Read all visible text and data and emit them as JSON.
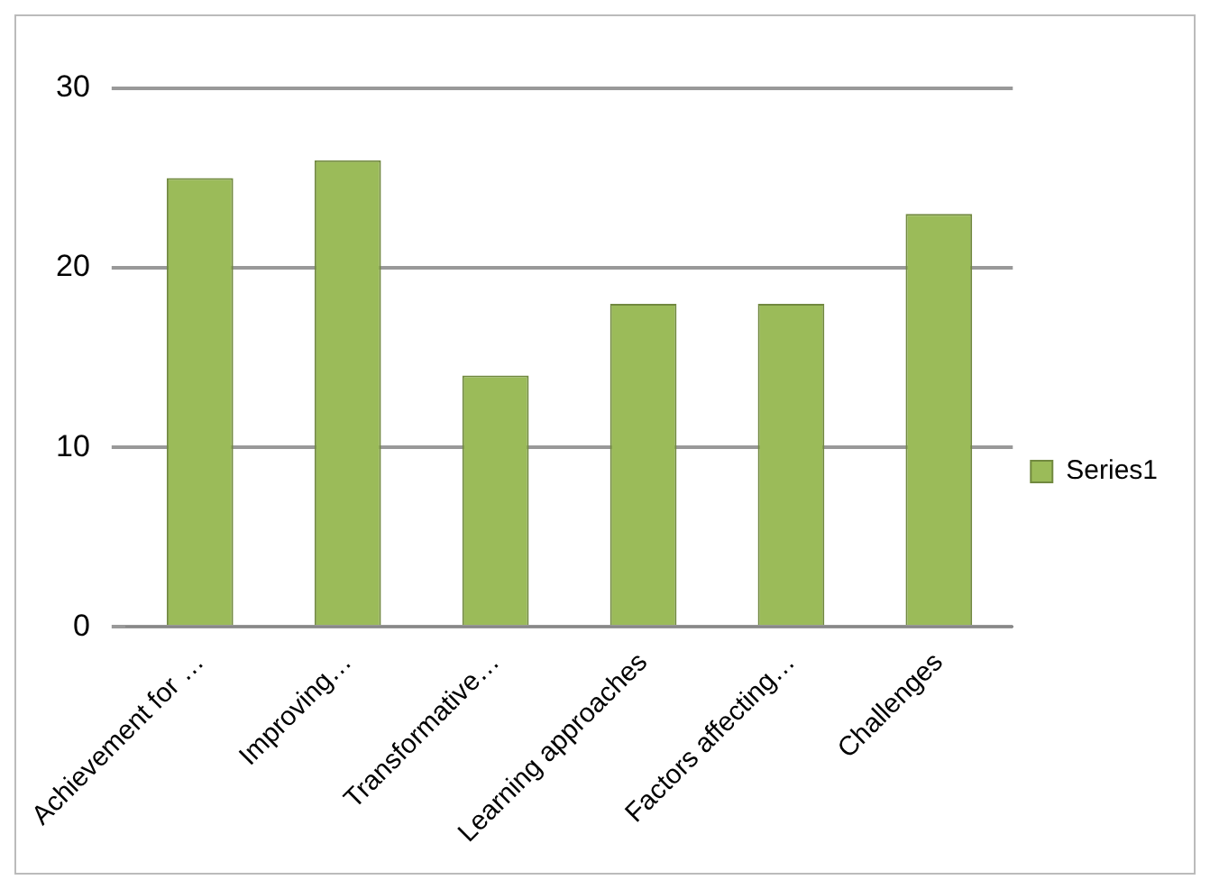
{
  "chart_data": {
    "type": "bar",
    "categories": [
      "Achievement for …",
      "Improving…",
      "Transformative…",
      "Learning approaches",
      "Factors affecting…",
      "Challenges"
    ],
    "series": [
      {
        "name": "Series1",
        "color": "#9bbb59",
        "values": [
          25,
          26,
          14,
          18,
          18,
          23
        ]
      }
    ],
    "ylim": [
      0,
      30
    ],
    "yticks": [
      0,
      10,
      20,
      30
    ],
    "grid": "y",
    "legend": "right"
  }
}
